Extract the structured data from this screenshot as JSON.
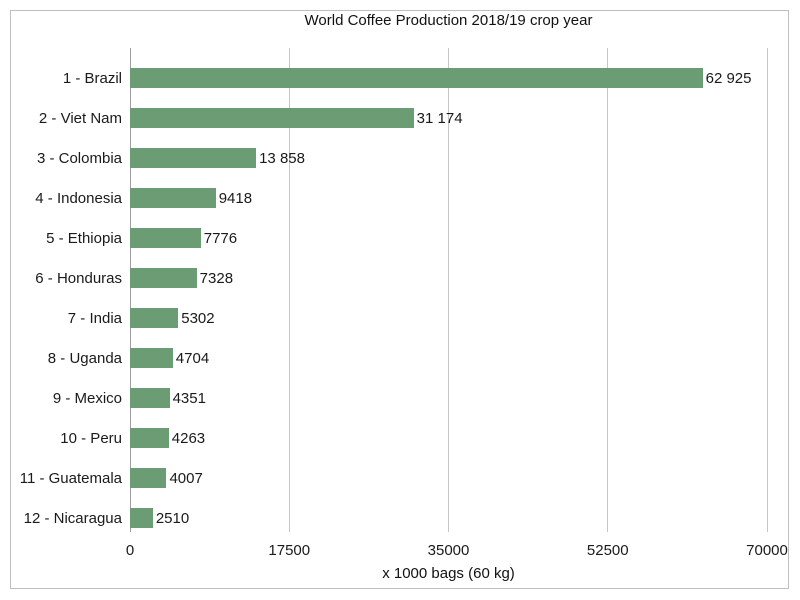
{
  "chart_data": {
    "type": "bar",
    "orientation": "horizontal",
    "title": "World Coffee Production 2018/19 crop year",
    "xlabel": "x 1000 bags (60 kg)",
    "ylabel": "",
    "categories": [
      "1 - Brazil",
      "2 - Viet Nam",
      "3 - Colombia",
      "4 - Indonesia",
      "5 - Ethiopia",
      "6 - Honduras",
      "7 - India",
      "8 - Uganda",
      "9 - Mexico",
      "10 - Peru",
      "11 - Guatemala",
      "12 - Nicaragua"
    ],
    "values": [
      62925,
      31174,
      13858,
      9418,
      7776,
      7328,
      5302,
      4704,
      4351,
      4263,
      4007,
      2510
    ],
    "value_labels": [
      "62 925",
      "31 174",
      "13 858",
      "9418",
      "7776",
      "7328",
      "5302",
      "4704",
      "4351",
      "4263",
      "4007",
      "2510"
    ],
    "xlim": [
      0,
      70000
    ],
    "xticks": [
      0,
      17500,
      35000,
      52500,
      70000
    ],
    "xtick_labels": [
      "0",
      "17500",
      "35000",
      "52500",
      "70000"
    ],
    "grid": true,
    "legend": "none",
    "colors": {
      "bar": "#6b9c74",
      "gridline": "#c6c6c6",
      "axis_line": "#9d9d9d",
      "text": "#1a1a1a",
      "chart_border": "#bfbfbf",
      "background": "#ffffff"
    }
  }
}
